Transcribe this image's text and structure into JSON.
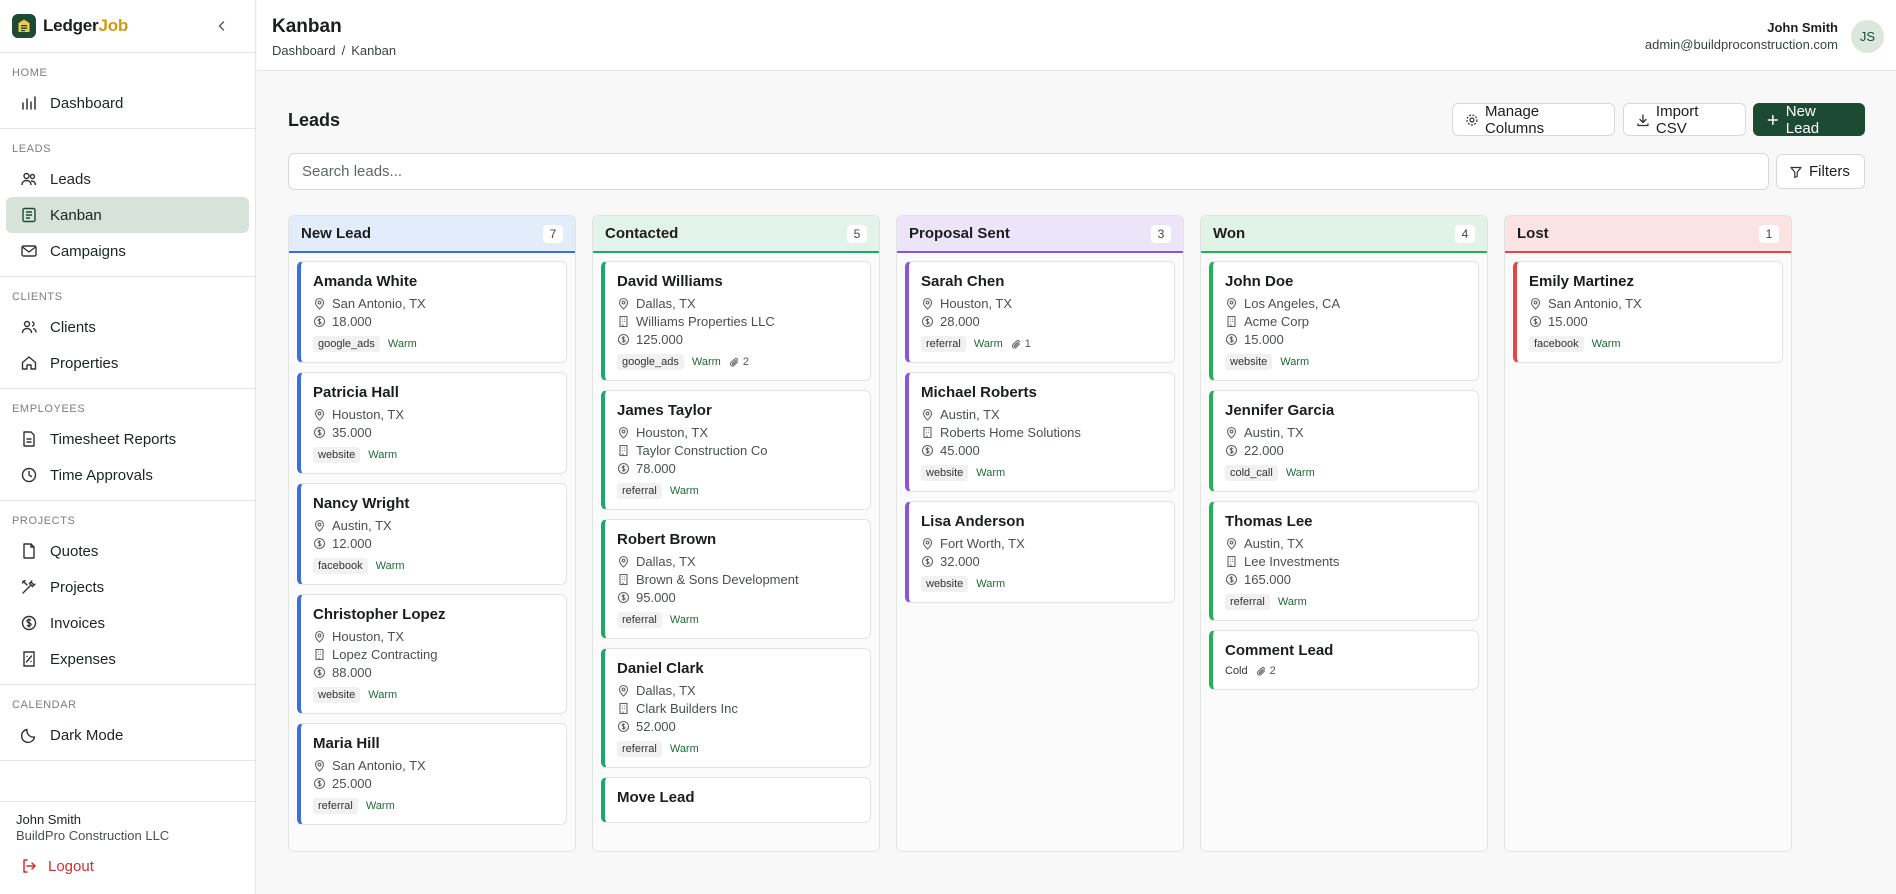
{
  "brand": {
    "name_main": "Ledger",
    "name_accent": "Job"
  },
  "sidebar": {
    "sections": [
      {
        "title": "HOME",
        "items": [
          {
            "label": "Dashboard",
            "icon": "chart-bar-icon"
          }
        ]
      },
      {
        "title": "LEADS",
        "items": [
          {
            "label": "Leads",
            "icon": "users-icon"
          },
          {
            "label": "Kanban",
            "icon": "kanban-icon",
            "active": true
          },
          {
            "label": "Campaigns",
            "icon": "mail-icon"
          }
        ]
      },
      {
        "title": "CLIENTS",
        "items": [
          {
            "label": "Clients",
            "icon": "user-group-icon"
          },
          {
            "label": "Properties",
            "icon": "home-icon"
          }
        ]
      },
      {
        "title": "EMPLOYEES",
        "items": [
          {
            "label": "Timesheet Reports",
            "icon": "document-icon"
          },
          {
            "label": "Time Approvals",
            "icon": "clock-icon"
          }
        ]
      },
      {
        "title": "PROJECTS",
        "items": [
          {
            "label": "Quotes",
            "icon": "file-icon"
          },
          {
            "label": "Projects",
            "icon": "tools-icon"
          },
          {
            "label": "Invoices",
            "icon": "dollar-circle-icon"
          },
          {
            "label": "Expenses",
            "icon": "receipt-icon"
          }
        ]
      },
      {
        "title": "CALENDAR",
        "items": [
          {
            "label": "Dark Mode",
            "icon": "moon-icon"
          }
        ]
      }
    ],
    "user": {
      "name": "John Smith",
      "company": "BuildPro Construction LLC"
    },
    "logout_label": "Logout"
  },
  "header": {
    "title": "Kanban",
    "breadcrumb": [
      "Dashboard",
      "Kanban"
    ],
    "user_name": "John Smith",
    "user_email": "admin@buildproconstruction.com",
    "avatar_initials": "JS"
  },
  "main": {
    "title": "Leads",
    "manage_columns_label": "Manage Columns",
    "import_csv_label": "Import CSV",
    "new_lead_label": "New Lead",
    "search_placeholder": "Search leads...",
    "filters_label": "Filters"
  },
  "columns": [
    {
      "title": "New Lead",
      "count": "7",
      "color": "#3b6fd9",
      "head_bg": "#e3ecfb",
      "cards": [
        {
          "name": "Amanda White",
          "location": "San Antonio, TX",
          "value": "18.000",
          "source": "google_ads",
          "temp": "Warm"
        },
        {
          "name": "Patricia Hall",
          "location": "Houston, TX",
          "value": "35.000",
          "source": "website",
          "temp": "Warm"
        },
        {
          "name": "Nancy Wright",
          "location": "Austin, TX",
          "value": "12.000",
          "source": "facebook",
          "temp": "Warm"
        },
        {
          "name": "Christopher Lopez",
          "location": "Houston, TX",
          "company": "Lopez Contracting",
          "value": "88.000",
          "source": "website",
          "temp": "Warm"
        },
        {
          "name": "Maria Hill",
          "location": "San Antonio, TX",
          "value": "25.000",
          "source": "referral",
          "temp": "Warm"
        }
      ]
    },
    {
      "title": "Contacted",
      "count": "5",
      "color": "#1aa86b",
      "head_bg": "#e1f3ea",
      "cards": [
        {
          "name": "David Williams",
          "location": "Dallas, TX",
          "company": "Williams Properties LLC",
          "value": "125.000",
          "source": "google_ads",
          "temp": "Warm",
          "attachments": "2"
        },
        {
          "name": "James Taylor",
          "location": "Houston, TX",
          "company": "Taylor Construction Co",
          "value": "78.000",
          "source": "referral",
          "temp": "Warm"
        },
        {
          "name": "Robert Brown",
          "location": "Dallas, TX",
          "company": "Brown & Sons Development",
          "value": "95.000",
          "source": "referral",
          "temp": "Warm"
        },
        {
          "name": "Daniel Clark",
          "location": "Dallas, TX",
          "company": "Clark Builders Inc",
          "value": "52.000",
          "source": "referral",
          "temp": "Warm"
        },
        {
          "name": "Move Lead"
        }
      ]
    },
    {
      "title": "Proposal Sent",
      "count": "3",
      "color": "#8b55d9",
      "head_bg": "#ece5f9",
      "cards": [
        {
          "name": "Sarah Chen",
          "location": "Houston, TX",
          "value": "28.000",
          "source": "referral",
          "temp": "Warm",
          "attachments": "1"
        },
        {
          "name": "Michael Roberts",
          "location": "Austin, TX",
          "company": "Roberts Home Solutions",
          "value": "45.000",
          "source": "website",
          "temp": "Warm"
        },
        {
          "name": "Lisa Anderson",
          "location": "Fort Worth, TX",
          "value": "32.000",
          "source": "website",
          "temp": "Warm"
        }
      ]
    },
    {
      "title": "Won",
      "count": "4",
      "color": "#27b05a",
      "head_bg": "#e1f3e6",
      "cards": [
        {
          "name": "John Doe",
          "location": "Los Angeles, CA",
          "company": "Acme Corp",
          "value": "15.000",
          "source": "website",
          "temp": "Warm"
        },
        {
          "name": "Jennifer Garcia",
          "location": "Austin, TX",
          "value": "22.000",
          "source": "cold_call",
          "temp": "Warm"
        },
        {
          "name": "Thomas Lee",
          "location": "Austin, TX",
          "company": "Lee Investments",
          "value": "165.000",
          "source": "referral",
          "temp": "Warm"
        },
        {
          "name": "Comment Lead",
          "temp": "Cold",
          "attachments": "2"
        }
      ]
    },
    {
      "title": "Lost",
      "count": "1",
      "color": "#e04848",
      "head_bg": "#fbe3e3",
      "cards": [
        {
          "name": "Emily Martinez",
          "location": "San Antonio, TX",
          "value": "15.000",
          "source": "facebook",
          "temp": "Warm"
        }
      ]
    }
  ]
}
